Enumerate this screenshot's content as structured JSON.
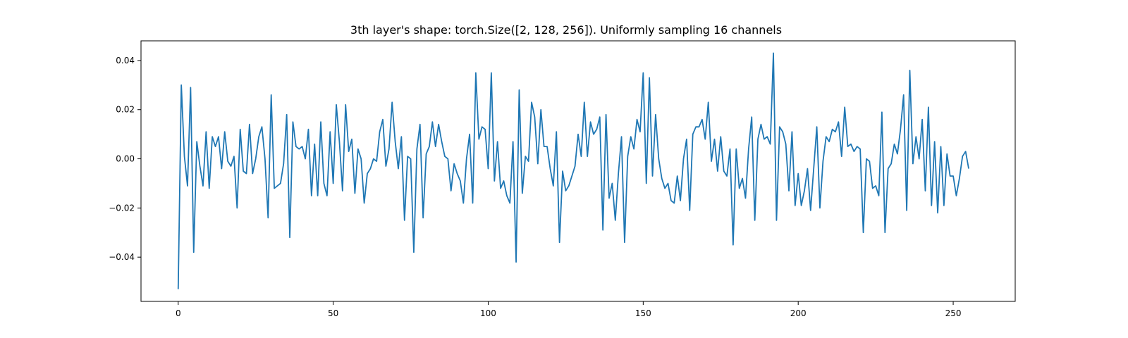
{
  "chart_data": {
    "type": "line",
    "title": "3th layer's shape: torch.Size([2, 128, 256]). Uniformly sampling 16 channels",
    "xlabel": "",
    "ylabel": "",
    "xlim": [
      -12,
      270
    ],
    "ylim": [
      -0.058,
      0.048
    ],
    "xticks": [
      0,
      50,
      100,
      150,
      200,
      250
    ],
    "yticks": [
      -0.04,
      -0.02,
      0.0,
      0.02,
      0.04
    ],
    "ytick_labels": [
      "−0.04",
      "−0.02",
      "0.00",
      "0.02",
      "0.04"
    ],
    "grid": false,
    "line_color": "#1f77b4",
    "series": [
      {
        "values": [
          -0.053,
          0.03,
          0.001,
          -0.011,
          0.029,
          -0.038,
          0.007,
          -0.003,
          -0.011,
          0.011,
          -0.012,
          0.009,
          0.005,
          0.009,
          -0.004,
          0.011,
          -0.001,
          -0.003,
          0.001,
          -0.02,
          0.012,
          -0.005,
          -0.006,
          0.014,
          -0.006,
          0.0,
          0.009,
          0.013,
          0.0,
          -0.024,
          0.026,
          -0.012,
          -0.011,
          -0.01,
          -0.002,
          0.018,
          -0.032,
          0.015,
          0.005,
          0.004,
          0.005,
          0.0,
          0.012,
          -0.015,
          0.006,
          -0.015,
          0.015,
          -0.01,
          -0.015,
          0.011,
          -0.01,
          0.022,
          0.007,
          -0.013,
          0.022,
          0.003,
          0.008,
          -0.014,
          0.004,
          0.0,
          -0.018,
          -0.006,
          -0.004,
          0.0,
          -0.001,
          0.011,
          0.016,
          -0.003,
          0.004,
          0.023,
          0.007,
          -0.004,
          0.009,
          -0.025,
          0.001,
          0.0,
          -0.038,
          0.004,
          0.014,
          -0.024,
          0.002,
          0.005,
          0.015,
          0.005,
          0.014,
          0.007,
          0.001,
          0.0,
          -0.013,
          -0.002,
          -0.006,
          -0.009,
          -0.018,
          0.0,
          0.01,
          -0.018,
          0.035,
          0.008,
          0.013,
          0.012,
          -0.004,
          0.035,
          -0.009,
          0.007,
          -0.012,
          -0.009,
          -0.015,
          -0.018,
          0.007,
          -0.042,
          0.028,
          -0.014,
          0.001,
          -0.001,
          0.023,
          0.017,
          -0.002,
          0.02,
          0.005,
          0.005,
          -0.004,
          -0.011,
          0.011,
          -0.034,
          -0.005,
          -0.013,
          -0.011,
          -0.007,
          -0.003,
          0.01,
          0.001,
          0.023,
          0.001,
          0.015,
          0.01,
          0.012,
          0.017,
          -0.029,
          0.018,
          -0.016,
          -0.01,
          -0.025,
          -0.006,
          0.009,
          -0.034,
          0.001,
          0.009,
          0.004,
          0.016,
          0.011,
          0.035,
          -0.01,
          0.033,
          -0.007,
          0.018,
          0.0,
          -0.008,
          -0.012,
          -0.01,
          -0.017,
          -0.018,
          -0.007,
          -0.017,
          0.0,
          0.008,
          -0.021,
          0.01,
          0.013,
          0.013,
          0.016,
          0.008,
          0.023,
          -0.001,
          0.008,
          -0.005,
          0.009,
          -0.005,
          -0.007,
          0.004,
          -0.035,
          0.004,
          -0.012,
          -0.008,
          -0.016,
          0.004,
          0.017,
          -0.025,
          0.008,
          0.014,
          0.008,
          0.009,
          0.006,
          0.043,
          -0.025,
          0.013,
          0.011,
          0.006,
          -0.013,
          0.011,
          -0.019,
          -0.006,
          -0.019,
          -0.013,
          -0.004,
          -0.021,
          -0.004,
          0.013,
          -0.02,
          -0.001,
          0.009,
          0.007,
          0.012,
          0.011,
          0.015,
          0.001,
          0.021,
          0.005,
          0.006,
          0.003,
          0.005,
          0.004,
          -0.03,
          0.0,
          -0.001,
          -0.012,
          -0.011,
          -0.015,
          0.019,
          -0.03,
          -0.004,
          -0.002,
          0.006,
          0.002,
          0.012,
          0.026,
          -0.021,
          0.036,
          -0.002,
          0.009,
          0.0,
          0.016,
          -0.013,
          0.021,
          -0.019,
          0.007,
          -0.022,
          0.005,
          -0.019,
          0.002,
          -0.007,
          -0.007,
          -0.015,
          -0.008,
          0.001,
          0.003,
          -0.004
        ]
      }
    ]
  }
}
